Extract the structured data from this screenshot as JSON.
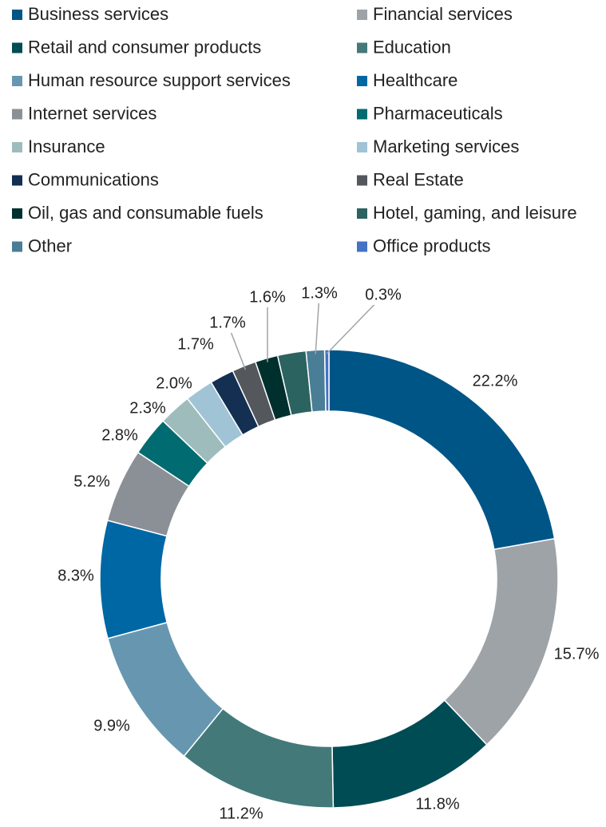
{
  "chart_data": {
    "type": "donut",
    "categories": [
      "Business services",
      "Financial services",
      "Retail and consumer products",
      "Education",
      "Human resource support services",
      "Healthcare",
      "Internet services",
      "Pharmaceuticals",
      "Insurance",
      "Marketing services",
      "Communications",
      "Real Estate",
      "Oil, gas and consumable fuels",
      "Hotel, gaming, and leisure",
      "Other",
      "Office products"
    ],
    "values": [
      22.2,
      15.7,
      11.8,
      11.2,
      9.9,
      8.3,
      5.2,
      2.8,
      2.3,
      2.0,
      1.7,
      1.7,
      1.6,
      2.0,
      1.3,
      0.3
    ],
    "value_labels": [
      "22.2%",
      "15.7%",
      "11.8%",
      "11.2%",
      "9.9%",
      "8.3%",
      "5.2%",
      "2.8%",
      "2.3%",
      "2.0%",
      "1.7%",
      "1.7%",
      "1.6%",
      null,
      "1.3%",
      "0.3%"
    ],
    "colors": [
      "#005587",
      "#9ea3a8",
      "#004c54",
      "#44797a",
      "#6797b0",
      "#0067a5",
      "#8b9096",
      "#006b70",
      "#9fbcbc",
      "#a1c3d6",
      "#132f52",
      "#54585d",
      "#00302e",
      "#2b6360",
      "#4a7e96",
      "#4472c4"
    ],
    "legend": "top"
  }
}
